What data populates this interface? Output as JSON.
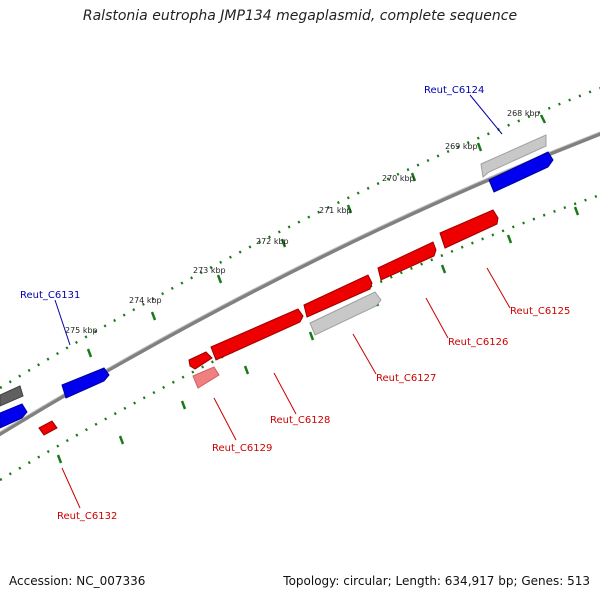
{
  "title": "Ralstonia eutropha JMP134 megaplasmid, complete sequence",
  "footer": {
    "accession": "Accession: NC_007336",
    "summary": "Topology: circular; Length: 634,917 bp; Genes: 513"
  },
  "colors": {
    "backbone": "#808080",
    "tick": "#1a7a1a",
    "forward_gene": "#0000ee",
    "reverse_gene": "#ee0000",
    "reverse_gene_light": "#f08080",
    "rna_or_other": "#c0c0c0",
    "dark_feature": "#606060",
    "forward_label": "#0000aa",
    "reverse_label": "#cc0000"
  },
  "kbp_labels": [
    "268 kbp",
    "269 kbp",
    "270 kbp",
    "271 kbp",
    "272 kbp",
    "273 kbp",
    "274 kbp",
    "275 kbp"
  ],
  "gene_labels": [
    {
      "text": "Reut_C6124",
      "strand": "forward"
    },
    {
      "text": "Reut_C6131",
      "strand": "forward"
    },
    {
      "text": "Reut_C6125",
      "strand": "reverse"
    },
    {
      "text": "Reut_C6126",
      "strand": "reverse"
    },
    {
      "text": "Reut_C6127",
      "strand": "reverse"
    },
    {
      "text": "Reut_C6128",
      "strand": "reverse"
    },
    {
      "text": "Reut_C6129",
      "strand": "reverse"
    },
    {
      "text": "Reut_C6132",
      "strand": "reverse"
    }
  ]
}
